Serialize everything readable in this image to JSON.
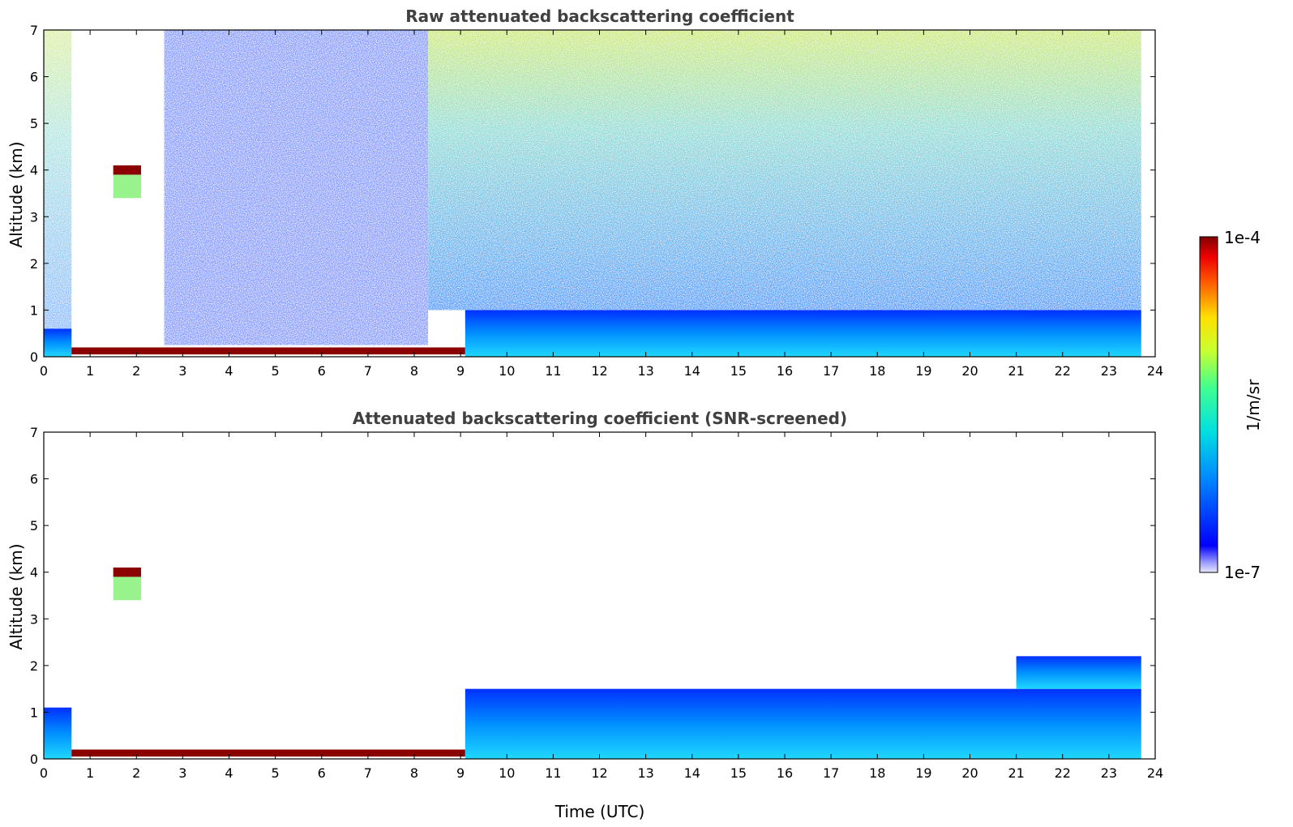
{
  "chart_data": [
    {
      "type": "heatmap",
      "title": "Raw attenuated backscattering coefficient",
      "xlabel": "",
      "ylabel": "Altitude (km)",
      "xlim": [
        0,
        24
      ],
      "ylim": [
        0,
        7
      ],
      "x_ticks": [
        "0",
        "1",
        "2",
        "3",
        "4",
        "5",
        "6",
        "7",
        "8",
        "9",
        "10",
        "11",
        "12",
        "13",
        "14",
        "15",
        "16",
        "17",
        "18",
        "19",
        "20",
        "21",
        "22",
        "23",
        "24"
      ],
      "y_ticks": [
        "0",
        "1",
        "2",
        "3",
        "4",
        "5",
        "6",
        "7"
      ],
      "data_end_time": 23.7,
      "features": [
        {
          "name": "surface aerosol layer",
          "time": [
            0,
            0.6
          ],
          "altitude": [
            0,
            0.6
          ],
          "level": "medium"
        },
        {
          "name": "cloud",
          "time": [
            1.5,
            2.1
          ],
          "altitude": [
            3.9,
            4.1
          ],
          "level": "high"
        },
        {
          "name": "low cloud",
          "time": [
            0.6,
            9.1
          ],
          "altitude": [
            0.05,
            0.2
          ],
          "level": "high"
        },
        {
          "name": "boundary layer",
          "time": [
            9.1,
            23.7
          ],
          "altitude": [
            0,
            1.0
          ],
          "level": "medium"
        },
        {
          "name": "daytime noise",
          "time": [
            8.3,
            23.7
          ],
          "altitude": [
            1.0,
            7.0
          ],
          "level": "noisy"
        }
      ]
    },
    {
      "type": "heatmap",
      "title": "Attenuated backscattering coefficient (SNR-screened)",
      "xlabel": "Time (UTC)",
      "ylabel": "Altitude (km)",
      "xlim": [
        0,
        24
      ],
      "ylim": [
        0,
        7
      ],
      "x_ticks": [
        "0",
        "1",
        "2",
        "3",
        "4",
        "5",
        "6",
        "7",
        "8",
        "9",
        "10",
        "11",
        "12",
        "13",
        "14",
        "15",
        "16",
        "17",
        "18",
        "19",
        "20",
        "21",
        "22",
        "23",
        "24"
      ],
      "y_ticks": [
        "0",
        "1",
        "2",
        "3",
        "4",
        "5",
        "6",
        "7"
      ],
      "data_end_time": 23.7,
      "features": [
        {
          "name": "surface aerosol layer",
          "time": [
            0,
            0.6
          ],
          "altitude": [
            0,
            1.1
          ],
          "level": "medium"
        },
        {
          "name": "cloud",
          "time": [
            1.5,
            2.1
          ],
          "altitude": [
            3.9,
            4.1
          ],
          "level": "high"
        },
        {
          "name": "low cloud",
          "time": [
            0.6,
            9.1
          ],
          "altitude": [
            0.05,
            0.2
          ],
          "level": "high"
        },
        {
          "name": "boundary layer",
          "time": [
            9.1,
            23.7
          ],
          "altitude": [
            0,
            1.5
          ],
          "level": "medium"
        },
        {
          "name": "elevated aerosol",
          "time": [
            21.0,
            23.7
          ],
          "altitude": [
            1.5,
            2.2
          ],
          "level": "medium"
        }
      ]
    }
  ],
  "colorbar": {
    "label": "1/m/sr",
    "max_label": "1e-4",
    "min_label": "1e-7",
    "colormap": "jet",
    "scale": "log"
  }
}
